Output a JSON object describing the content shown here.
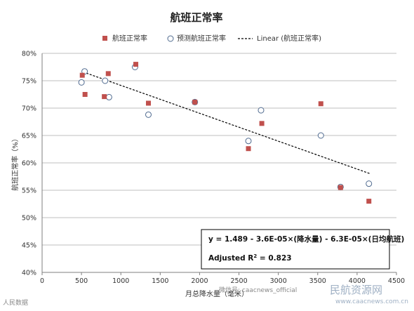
{
  "chart_data": {
    "type": "scatter",
    "title": "航班正常率",
    "xlabel": "月总降水量（毫米）",
    "ylabel": "航班正常率（%）",
    "xlim": [
      0,
      4500
    ],
    "ylim": [
      40,
      80
    ],
    "x_ticks": [
      "0",
      "500",
      "1000",
      "1500",
      "2000",
      "2500",
      "3000",
      "3500",
      "4000",
      "4500"
    ],
    "y_ticks": [
      "40%",
      "45%",
      "50%",
      "55%",
      "60%",
      "65%",
      "70%",
      "75%",
      "80%"
    ],
    "grid": "horizontal",
    "legend_position": "top",
    "series": [
      {
        "name": "航班正常率",
        "marker": "square",
        "color": "#c0504d",
        "points": [
          [
            510,
            76.0
          ],
          [
            545,
            72.5
          ],
          [
            790,
            72.1
          ],
          [
            840,
            76.3
          ],
          [
            1190,
            78.0
          ],
          [
            1350,
            70.9
          ],
          [
            1940,
            71.1
          ],
          [
            2620,
            62.6
          ],
          [
            2790,
            67.2
          ],
          [
            3540,
            70.8
          ],
          [
            3790,
            55.5
          ],
          [
            4150,
            53.0
          ]
        ]
      },
      {
        "name": "预测航班正常率",
        "marker": "circle",
        "color": "#4f6a8f",
        "points": [
          [
            500,
            74.7
          ],
          [
            540,
            76.7
          ],
          [
            800,
            75.0
          ],
          [
            850,
            72.0
          ],
          [
            1180,
            77.5
          ],
          [
            1350,
            68.8
          ],
          [
            1940,
            71.1
          ],
          [
            2620,
            64.0
          ],
          [
            2780,
            69.6
          ],
          [
            3540,
            65.0
          ],
          [
            3790,
            55.6
          ],
          [
            4150,
            56.2
          ]
        ]
      },
      {
        "name": "Linear (航班正常率)",
        "style": "dashed",
        "color": "#000000",
        "points": [
          [
            520,
            76.6
          ],
          [
            4170,
            58.0
          ]
        ]
      }
    ],
    "annotation": {
      "line1": "y = 1.489 - 3.6E-05×(降水量) - 6.3E-05×(日均航班)",
      "line2_prefix": "Adjusted R",
      "line2_sup": "2",
      "line2_suffix": " = 0.823"
    }
  },
  "watermark": {
    "left": "人民数据",
    "wechat": "微信号: caacnews_official",
    "logo": "民航资源网",
    "url": "www.caacnews.com.cn"
  }
}
